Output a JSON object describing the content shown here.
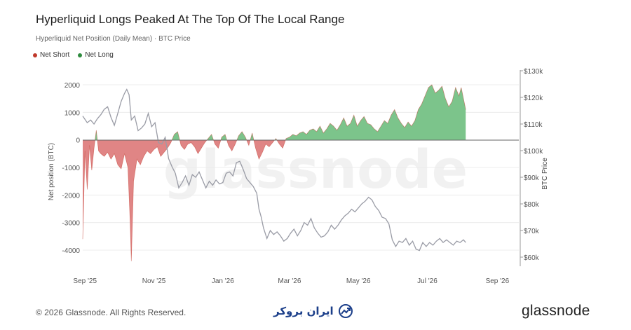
{
  "page": {
    "title": "Hyperliquid Longs Peaked At The Top Of The Local Range",
    "subtitle": "Hyperliquid Net Position (Daily Mean) · BTC Price",
    "footer_copyright": "© 2026 Glassnode. All Rights Reserved.",
    "footer_partner": "ایران بروکر",
    "footer_logo": "glassnode",
    "watermark": "glassnode"
  },
  "colors": {
    "net_short": "#c0392b",
    "net_short_fill": "#e08585",
    "net_long": "#2e8b3e",
    "net_long_fill": "#7cc48b",
    "btc_price": "#9a9ca6",
    "grid": "#ececec",
    "zero_line": "#666666",
    "partner_icon": "#1c3f8a"
  },
  "chart_data": {
    "type": "area",
    "legend": [
      {
        "name": "Net Short",
        "color": "#c0392b"
      },
      {
        "name": "Net Long",
        "color": "#2e8b3e"
      }
    ],
    "legend_position": "top-left",
    "x_tick_labels": [
      "Sep '25",
      "Nov '25",
      "Jan '26",
      "Mar '26",
      "May '26",
      "Jul '26",
      "Sep '26"
    ],
    "x_ticks": [
      "2025-09-01",
      "2025-11-01",
      "2026-01-01",
      "2026-03-01",
      "2026-05-01",
      "2026-07-01",
      "2026-09-01"
    ],
    "xlim": [
      "2025-08-30",
      "2026-09-20"
    ],
    "ylabel_left": "Net position (BTC)",
    "ylim_left": [
      -4500,
      2300
    ],
    "yticks_left": [
      2000,
      1000,
      0,
      -1000,
      -2000,
      -3000,
      -4000
    ],
    "ylabel_right": "BTC Price",
    "ylim_right": [
      57000,
      130000
    ],
    "yticks_right": [
      130000,
      120000,
      110000,
      100000,
      90000,
      80000,
      70000,
      60000
    ],
    "ytick_labels_right": [
      "$130k",
      "$120k",
      "$110k",
      "$100k",
      "$90k",
      "$80k",
      "$70k",
      "$60k"
    ],
    "grid": true,
    "series": [
      {
        "name": "Net Position",
        "axis": "left",
        "dates": [
          "2025-08-30",
          "2025-09-01",
          "2025-09-03",
          "2025-09-05",
          "2025-09-07",
          "2025-09-09",
          "2025-09-11",
          "2025-09-13",
          "2025-09-15",
          "2025-09-18",
          "2025-09-21",
          "2025-09-24",
          "2025-09-27",
          "2025-09-30",
          "2025-10-03",
          "2025-10-06",
          "2025-10-09",
          "2025-10-11",
          "2025-10-12",
          "2025-10-14",
          "2025-10-17",
          "2025-10-20",
          "2025-10-23",
          "2025-10-26",
          "2025-10-29",
          "2025-11-01",
          "2025-11-04",
          "2025-11-07",
          "2025-11-10",
          "2025-11-13",
          "2025-11-16",
          "2025-11-19",
          "2025-11-22",
          "2025-11-25",
          "2025-11-28",
          "2025-12-01",
          "2025-12-04",
          "2025-12-07",
          "2025-12-10",
          "2025-12-13",
          "2025-12-16",
          "2025-12-19",
          "2025-12-22",
          "2025-12-25",
          "2025-12-28",
          "2025-12-31",
          "2026-01-03",
          "2026-01-06",
          "2026-01-09",
          "2026-01-12",
          "2026-01-15",
          "2026-01-18",
          "2026-01-21",
          "2026-01-24",
          "2026-01-27",
          "2026-01-30",
          "2026-02-02",
          "2026-02-05",
          "2026-02-08",
          "2026-02-11",
          "2026-02-14",
          "2026-02-17",
          "2026-02-20",
          "2026-02-23",
          "2026-02-26",
          "2026-03-01",
          "2026-03-04",
          "2026-03-07",
          "2026-03-10",
          "2026-03-13",
          "2026-03-16",
          "2026-03-19",
          "2026-03-22",
          "2026-03-25",
          "2026-03-28",
          "2026-03-31",
          "2026-04-03",
          "2026-04-06",
          "2026-04-09",
          "2026-04-12",
          "2026-04-15",
          "2026-04-18",
          "2026-04-21",
          "2026-04-24",
          "2026-04-27",
          "2026-04-30",
          "2026-05-03",
          "2026-05-06",
          "2026-05-09",
          "2026-05-12",
          "2026-05-15",
          "2026-05-18",
          "2026-05-21",
          "2026-05-24",
          "2026-05-27",
          "2026-05-30",
          "2026-06-02",
          "2026-06-05",
          "2026-06-08",
          "2026-06-11",
          "2026-06-14",
          "2026-06-17",
          "2026-06-20",
          "2026-06-23",
          "2026-06-26",
          "2026-06-29",
          "2026-07-02",
          "2026-07-05",
          "2026-07-08",
          "2026-07-11",
          "2026-07-14",
          "2026-07-17",
          "2026-07-20",
          "2026-07-23",
          "2026-07-26",
          "2026-07-29",
          "2026-07-31",
          "2026-08-02",
          "2026-08-04"
        ],
        "values": [
          -3600,
          -400,
          -1800,
          -200,
          -1100,
          -300,
          350,
          -400,
          -500,
          -600,
          -450,
          -700,
          -500,
          -900,
          -1050,
          -500,
          -1000,
          -3000,
          -4400,
          -1500,
          -700,
          -900,
          -600,
          -400,
          -500,
          -350,
          -250,
          -600,
          -450,
          -300,
          -100,
          200,
          300,
          -200,
          -350,
          -150,
          -100,
          -250,
          -500,
          -300,
          -100,
          50,
          200,
          -150,
          -300,
          100,
          200,
          -200,
          -400,
          -150,
          150,
          300,
          100,
          -200,
          250,
          -300,
          -700,
          -450,
          -150,
          -250,
          -100,
          50,
          -150,
          -300,
          50,
          100,
          200,
          150,
          250,
          300,
          200,
          350,
          400,
          300,
          500,
          250,
          400,
          600,
          500,
          350,
          550,
          800,
          500,
          600,
          900,
          500,
          700,
          850,
          600,
          550,
          400,
          300,
          500,
          700,
          600,
          900,
          1100,
          800,
          600,
          450,
          650,
          500,
          700,
          1100,
          1300,
          1600,
          1900,
          2000,
          1700,
          1800,
          1950,
          1500,
          1200,
          1400,
          1900,
          1600,
          1900,
          1500,
          1100
        ]
      },
      {
        "name": "BTC Price",
        "axis": "right",
        "dates": [
          "2025-08-30",
          "2025-09-03",
          "2025-09-06",
          "2025-09-09",
          "2025-09-12",
          "2025-09-15",
          "2025-09-18",
          "2025-09-21",
          "2025-09-24",
          "2025-09-27",
          "2025-09-30",
          "2025-10-03",
          "2025-10-06",
          "2025-10-08",
          "2025-10-10",
          "2025-10-12",
          "2025-10-15",
          "2025-10-18",
          "2025-10-21",
          "2025-10-24",
          "2025-10-27",
          "2025-10-30",
          "2025-11-02",
          "2025-11-05",
          "2025-11-08",
          "2025-11-11",
          "2025-11-14",
          "2025-11-17",
          "2025-11-20",
          "2025-11-23",
          "2025-11-26",
          "2025-11-29",
          "2025-12-02",
          "2025-12-05",
          "2025-12-08",
          "2025-12-11",
          "2025-12-14",
          "2025-12-17",
          "2025-12-20",
          "2025-12-23",
          "2025-12-26",
          "2025-12-29",
          "2026-01-01",
          "2026-01-04",
          "2026-01-07",
          "2026-01-10",
          "2026-01-13",
          "2026-01-16",
          "2026-01-19",
          "2026-01-22",
          "2026-01-25",
          "2026-01-28",
          "2026-01-31",
          "2026-02-02",
          "2026-02-04",
          "2026-02-06",
          "2026-02-09",
          "2026-02-12",
          "2026-02-15",
          "2026-02-18",
          "2026-02-21",
          "2026-02-24",
          "2026-02-27",
          "2026-03-02",
          "2026-03-05",
          "2026-03-08",
          "2026-03-11",
          "2026-03-14",
          "2026-03-17",
          "2026-03-20",
          "2026-03-23",
          "2026-03-26",
          "2026-03-29",
          "2026-04-01",
          "2026-04-04",
          "2026-04-07",
          "2026-04-10",
          "2026-04-13",
          "2026-04-16",
          "2026-04-19",
          "2026-04-22",
          "2026-04-25",
          "2026-04-28",
          "2026-05-01",
          "2026-05-04",
          "2026-05-07",
          "2026-05-10",
          "2026-05-13",
          "2026-05-16",
          "2026-05-19",
          "2026-05-22",
          "2026-05-25",
          "2026-05-28",
          "2026-05-31",
          "2026-06-03",
          "2026-06-06",
          "2026-06-09",
          "2026-06-12",
          "2026-06-15",
          "2026-06-18",
          "2026-06-21",
          "2026-06-24",
          "2026-06-27",
          "2026-06-30",
          "2026-07-03",
          "2026-07-06",
          "2026-07-09",
          "2026-07-12",
          "2026-07-15",
          "2026-07-18",
          "2026-07-21",
          "2026-07-24",
          "2026-07-27",
          "2026-07-30",
          "2026-08-02",
          "2026-08-04"
        ],
        "values": [
          113000,
          110500,
          111500,
          110000,
          112000,
          113500,
          115500,
          116500,
          112500,
          109500,
          114000,
          118500,
          121500,
          123000,
          121000,
          111500,
          113000,
          107500,
          108500,
          110000,
          114000,
          109000,
          110500,
          103000,
          102500,
          105000,
          97000,
          94000,
          91500,
          86000,
          88000,
          90500,
          87000,
          91000,
          90000,
          92000,
          89000,
          86000,
          88500,
          87000,
          89000,
          87500,
          88000,
          91500,
          92000,
          90500,
          95500,
          96000,
          93000,
          89500,
          88000,
          86500,
          84000,
          78000,
          75000,
          71000,
          67000,
          70000,
          68500,
          69500,
          68000,
          66000,
          67000,
          69000,
          70500,
          68000,
          70000,
          73000,
          72000,
          74500,
          71000,
          69000,
          67500,
          68000,
          69500,
          72000,
          70500,
          72000,
          74000,
          75500,
          76500,
          78000,
          77000,
          78500,
          80000,
          81000,
          82500,
          81500,
          79000,
          77500,
          75000,
          74500,
          72500,
          66500,
          64000,
          66000,
          65500,
          67000,
          64500,
          66000,
          63000,
          62500,
          65500,
          64000,
          65500,
          64500,
          66000,
          67000,
          65500,
          66500,
          65500,
          64500,
          66000,
          65500,
          66500,
          65500
        ]
      }
    ]
  }
}
